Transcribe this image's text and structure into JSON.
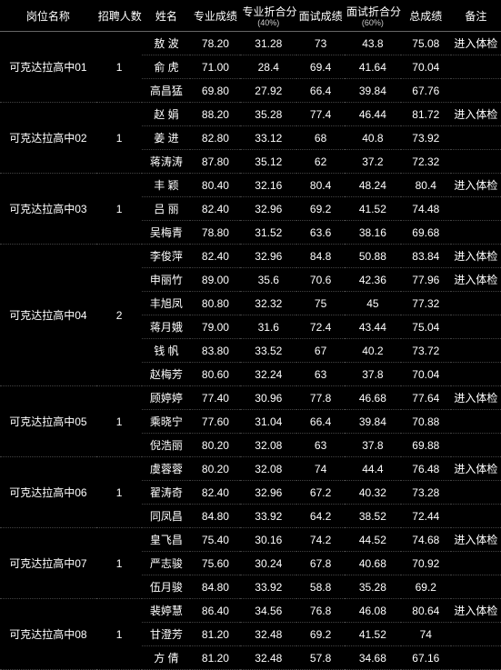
{
  "headers": {
    "post": "岗位名称",
    "count": "招聘人数",
    "name": "姓名",
    "zy": "专业成绩",
    "zy40": "专业折合分",
    "zy40_sub": "(40%)",
    "ms": "面试成绩",
    "ms60": "面试折合分",
    "ms60_sub": "(60%)",
    "total": "总成绩",
    "note": "备注"
  },
  "groups": [
    {
      "post": "可克达拉高中01",
      "count": "1",
      "rows": [
        {
          "name": "敖   波",
          "spaced": false,
          "zy": "78.20",
          "zy40": "31.28",
          "ms": "73",
          "ms60": "43.8",
          "total": "75.08",
          "note": "进入体检"
        },
        {
          "name": "俞   虎",
          "spaced": false,
          "zy": "71.00",
          "zy40": "28.4",
          "ms": "69.4",
          "ms60": "41.64",
          "total": "70.04",
          "note": ""
        },
        {
          "name": "高昌猛",
          "spaced": false,
          "zy": "69.80",
          "zy40": "27.92",
          "ms": "66.4",
          "ms60": "39.84",
          "total": "67.76",
          "note": ""
        }
      ]
    },
    {
      "post": "可克达拉高中02",
      "count": "1",
      "rows": [
        {
          "name": "赵   娟",
          "spaced": false,
          "zy": "88.20",
          "zy40": "35.28",
          "ms": "77.4",
          "ms60": "46.44",
          "total": "81.72",
          "note": "进入体检"
        },
        {
          "name": "姜   进",
          "spaced": false,
          "zy": "82.80",
          "zy40": "33.12",
          "ms": "68",
          "ms60": "40.8",
          "total": "73.92",
          "note": ""
        },
        {
          "name": "蒋涛涛",
          "spaced": false,
          "zy": "87.80",
          "zy40": "35.12",
          "ms": "62",
          "ms60": "37.2",
          "total": "72.32",
          "note": ""
        }
      ]
    },
    {
      "post": "可克达拉高中03",
      "count": "1",
      "rows": [
        {
          "name": "丰   颖",
          "spaced": false,
          "zy": "80.40",
          "zy40": "32.16",
          "ms": "80.4",
          "ms60": "48.24",
          "total": "80.4",
          "note": "进入体检"
        },
        {
          "name": "吕   丽",
          "spaced": false,
          "zy": "82.40",
          "zy40": "32.96",
          "ms": "69.2",
          "ms60": "41.52",
          "total": "74.48",
          "note": ""
        },
        {
          "name": "吴梅青",
          "spaced": false,
          "zy": "78.80",
          "zy40": "31.52",
          "ms": "63.6",
          "ms60": "38.16",
          "total": "69.68",
          "note": ""
        }
      ]
    },
    {
      "post": "可克达拉高中04",
      "count": "2",
      "rows": [
        {
          "name": "李俊萍",
          "spaced": false,
          "zy": "82.40",
          "zy40": "32.96",
          "ms": "84.8",
          "ms60": "50.88",
          "total": "83.84",
          "note": "进入体检"
        },
        {
          "name": "申丽竹",
          "spaced": false,
          "zy": "89.00",
          "zy40": "35.6",
          "ms": "70.6",
          "ms60": "42.36",
          "total": "77.96",
          "note": "进入体检"
        },
        {
          "name": "丰旭凤",
          "spaced": false,
          "zy": "80.80",
          "zy40": "32.32",
          "ms": "75",
          "ms60": "45",
          "total": "77.32",
          "note": ""
        },
        {
          "name": "蒋月娥",
          "spaced": false,
          "zy": "79.00",
          "zy40": "31.6",
          "ms": "72.4",
          "ms60": "43.44",
          "total": "75.04",
          "note": ""
        },
        {
          "name": "钱   帆",
          "spaced": false,
          "zy": "83.80",
          "zy40": "33.52",
          "ms": "67",
          "ms60": "40.2",
          "total": "73.72",
          "note": ""
        },
        {
          "name": "赵梅芳",
          "spaced": false,
          "zy": "80.60",
          "zy40": "32.24",
          "ms": "63",
          "ms60": "37.8",
          "total": "70.04",
          "note": ""
        }
      ]
    },
    {
      "post": "可克达拉高中05",
      "count": "1",
      "rows": [
        {
          "name": "顾婷婷",
          "spaced": false,
          "zy": "77.40",
          "zy40": "30.96",
          "ms": "77.8",
          "ms60": "46.68",
          "total": "77.64",
          "note": "进入体检"
        },
        {
          "name": "乘晓宁",
          "spaced": false,
          "zy": "77.60",
          "zy40": "31.04",
          "ms": "66.4",
          "ms60": "39.84",
          "total": "70.88",
          "note": ""
        },
        {
          "name": "倪浩丽",
          "spaced": false,
          "zy": "80.20",
          "zy40": "32.08",
          "ms": "63",
          "ms60": "37.8",
          "total": "69.88",
          "note": ""
        }
      ]
    },
    {
      "post": "可克达拉高中06",
      "count": "1",
      "rows": [
        {
          "name": "虞蓉蓉",
          "spaced": false,
          "zy": "80.20",
          "zy40": "32.08",
          "ms": "74",
          "ms60": "44.4",
          "total": "76.48",
          "note": "进入体检"
        },
        {
          "name": "翟涛奇",
          "spaced": false,
          "zy": "82.40",
          "zy40": "32.96",
          "ms": "67.2",
          "ms60": "40.32",
          "total": "73.28",
          "note": ""
        },
        {
          "name": "同凤昌",
          "spaced": false,
          "zy": "84.80",
          "zy40": "33.92",
          "ms": "64.2",
          "ms60": "38.52",
          "total": "72.44",
          "note": ""
        }
      ]
    },
    {
      "post": "可克达拉高中07",
      "count": "1",
      "rows": [
        {
          "name": "皇飞昌",
          "spaced": false,
          "zy": "75.40",
          "zy40": "30.16",
          "ms": "74.2",
          "ms60": "44.52",
          "total": "74.68",
          "note": "进入体检"
        },
        {
          "name": "严志骏",
          "spaced": false,
          "zy": "75.60",
          "zy40": "30.24",
          "ms": "67.8",
          "ms60": "40.68",
          "total": "70.92",
          "note": ""
        },
        {
          "name": "伍月骏",
          "spaced": false,
          "zy": "84.80",
          "zy40": "33.92",
          "ms": "58.8",
          "ms60": "35.28",
          "total": "69.2",
          "note": ""
        }
      ]
    },
    {
      "post": "可克达拉高中08",
      "count": "1",
      "rows": [
        {
          "name": "裴婷慧",
          "spaced": false,
          "zy": "86.40",
          "zy40": "34.56",
          "ms": "76.8",
          "ms60": "46.08",
          "total": "80.64",
          "note": "进入体检"
        },
        {
          "name": "甘澄芳",
          "spaced": false,
          "zy": "81.20",
          "zy40": "32.48",
          "ms": "69.2",
          "ms60": "41.52",
          "total": "74",
          "note": ""
        },
        {
          "name": "方   倩",
          "spaced": false,
          "zy": "81.20",
          "zy40": "32.48",
          "ms": "57.8",
          "ms60": "34.68",
          "total": "67.16",
          "note": ""
        }
      ]
    }
  ]
}
